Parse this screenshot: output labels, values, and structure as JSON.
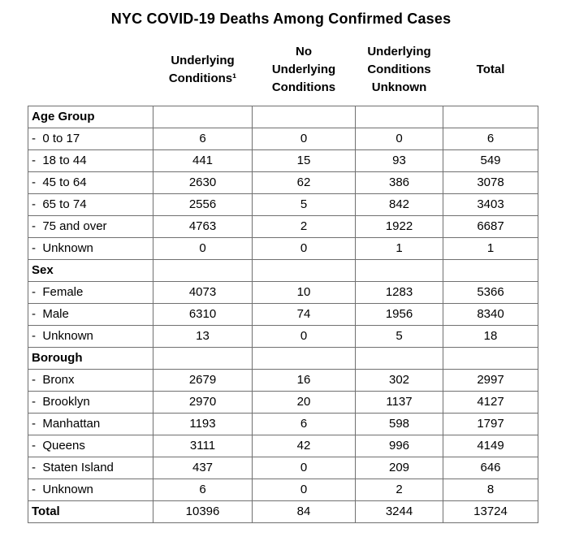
{
  "title": "NYC COVID-19 Deaths Among Confirmed Cases",
  "colors": {
    "background": "#ffffff",
    "text": "#000000",
    "grid_border": "#707070"
  },
  "header": {
    "col_label": "",
    "col2": "Underlying\nConditions¹",
    "col3": "No\nUnderlying\nConditions",
    "col4": "Underlying\nConditions\nUnknown",
    "col5": "Total"
  },
  "rows": [
    {
      "kind": "section",
      "label": "Age Group",
      "c1": "",
      "c2": "",
      "c3": "",
      "c4": ""
    },
    {
      "kind": "data",
      "label": "-  0 to 17",
      "c1": "6",
      "c2": "0",
      "c3": "0",
      "c4": "6"
    },
    {
      "kind": "data",
      "label": "-  18 to 44",
      "c1": "441",
      "c2": "15",
      "c3": "93",
      "c4": "549"
    },
    {
      "kind": "data",
      "label": "-  45 to 64",
      "c1": "2630",
      "c2": "62",
      "c3": "386",
      "c4": "3078"
    },
    {
      "kind": "data",
      "label": "-  65 to 74",
      "c1": "2556",
      "c2": "5",
      "c3": "842",
      "c4": "3403"
    },
    {
      "kind": "data",
      "label": "-  75 and over",
      "c1": "4763",
      "c2": "2",
      "c3": "1922",
      "c4": "6687"
    },
    {
      "kind": "data",
      "label": "-  Unknown",
      "c1": "0",
      "c2": "0",
      "c3": "1",
      "c4": "1"
    },
    {
      "kind": "section",
      "label": "Sex",
      "c1": "",
      "c2": "",
      "c3": "",
      "c4": ""
    },
    {
      "kind": "data",
      "label": "-  Female",
      "c1": "4073",
      "c2": "10",
      "c3": "1283",
      "c4": "5366"
    },
    {
      "kind": "data",
      "label": "-  Male",
      "c1": "6310",
      "c2": "74",
      "c3": "1956",
      "c4": "8340"
    },
    {
      "kind": "data",
      "label": "-  Unknown",
      "c1": "13",
      "c2": "0",
      "c3": "5",
      "c4": "18"
    },
    {
      "kind": "section",
      "label": "Borough",
      "c1": "",
      "c2": "",
      "c3": "",
      "c4": ""
    },
    {
      "kind": "data",
      "label": "-  Bronx",
      "c1": "2679",
      "c2": "16",
      "c3": "302",
      "c4": "2997"
    },
    {
      "kind": "data",
      "label": "-  Brooklyn",
      "c1": "2970",
      "c2": "20",
      "c3": "1137",
      "c4": "4127"
    },
    {
      "kind": "data",
      "label": "-  Manhattan",
      "c1": "1193",
      "c2": "6",
      "c3": "598",
      "c4": "1797"
    },
    {
      "kind": "data",
      "label": "-  Queens",
      "c1": "3111",
      "c2": "42",
      "c3": "996",
      "c4": "4149"
    },
    {
      "kind": "data",
      "label": "-  Staten Island",
      "c1": "437",
      "c2": "0",
      "c3": "209",
      "c4": "646"
    },
    {
      "kind": "data",
      "label": "-  Unknown",
      "c1": "6",
      "c2": "0",
      "c3": "2",
      "c4": "8"
    },
    {
      "kind": "total",
      "label": "Total",
      "c1": "10396",
      "c2": "84",
      "c3": "3244",
      "c4": "13724"
    }
  ],
  "chart_data": {
    "type": "table",
    "title": "NYC COVID-19 Deaths Among Confirmed Cases",
    "columns": [
      "Underlying Conditions¹",
      "No Underlying Conditions",
      "Underlying Conditions Unknown",
      "Total"
    ],
    "sections": [
      {
        "name": "Age Group",
        "rows": [
          {
            "label": "0 to 17",
            "values": [
              6,
              0,
              0,
              6
            ]
          },
          {
            "label": "18 to 44",
            "values": [
              441,
              15,
              93,
              549
            ]
          },
          {
            "label": "45 to 64",
            "values": [
              2630,
              62,
              386,
              3078
            ]
          },
          {
            "label": "65 to 74",
            "values": [
              2556,
              5,
              842,
              3403
            ]
          },
          {
            "label": "75 and over",
            "values": [
              4763,
              2,
              1922,
              6687
            ]
          },
          {
            "label": "Unknown",
            "values": [
              0,
              0,
              1,
              1
            ]
          }
        ]
      },
      {
        "name": "Sex",
        "rows": [
          {
            "label": "Female",
            "values": [
              4073,
              10,
              1283,
              5366
            ]
          },
          {
            "label": "Male",
            "values": [
              6310,
              74,
              1956,
              8340
            ]
          },
          {
            "label": "Unknown",
            "values": [
              13,
              0,
              5,
              18
            ]
          }
        ]
      },
      {
        "name": "Borough",
        "rows": [
          {
            "label": "Bronx",
            "values": [
              2679,
              16,
              302,
              2997
            ]
          },
          {
            "label": "Brooklyn",
            "values": [
              2970,
              20,
              1137,
              4127
            ]
          },
          {
            "label": "Manhattan",
            "values": [
              1193,
              6,
              598,
              1797
            ]
          },
          {
            "label": "Queens",
            "values": [
              3111,
              42,
              996,
              4149
            ]
          },
          {
            "label": "Staten Island",
            "values": [
              437,
              0,
              209,
              646
            ]
          },
          {
            "label": "Unknown",
            "values": [
              6,
              0,
              2,
              8
            ]
          }
        ]
      }
    ],
    "total_row": {
      "label": "Total",
      "values": [
        10396,
        84,
        3244,
        13724
      ]
    }
  }
}
